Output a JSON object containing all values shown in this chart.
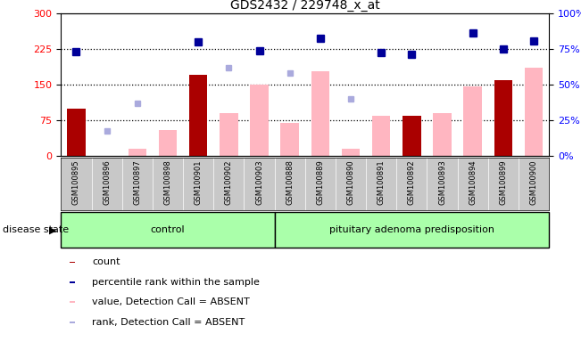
{
  "title": "GDS2432 / 229748_x_at",
  "samples": [
    "GSM100895",
    "GSM100896",
    "GSM100897",
    "GSM100898",
    "GSM100901",
    "GSM100902",
    "GSM100903",
    "GSM100888",
    "GSM100889",
    "GSM100890",
    "GSM100891",
    "GSM100892",
    "GSM100893",
    "GSM100894",
    "GSM100899",
    "GSM100900"
  ],
  "count_values": [
    100,
    0,
    0,
    0,
    170,
    0,
    0,
    0,
    0,
    0,
    0,
    85,
    0,
    0,
    160,
    0
  ],
  "percentile_rank": [
    220,
    null,
    null,
    null,
    240,
    null,
    222,
    null,
    248,
    null,
    218,
    215,
    null,
    260,
    225,
    242
  ],
  "absent_value": [
    null,
    null,
    14,
    55,
    null,
    90,
    150,
    70,
    178,
    15,
    85,
    null,
    90,
    147,
    null,
    185
  ],
  "absent_rank": [
    null,
    52,
    110,
    null,
    null,
    185,
    null,
    175,
    null,
    120,
    null,
    null,
    null,
    null,
    null,
    null
  ],
  "control_count": 7,
  "group1_label": "control",
  "group2_label": "pituitary adenoma predisposition",
  "ylim_left": [
    0,
    300
  ],
  "ylim_right": [
    0,
    100
  ],
  "yticks_left": [
    0,
    75,
    150,
    225,
    300
  ],
  "yticks_right": [
    0,
    25,
    50,
    75,
    100
  ],
  "ytick_right_labels": [
    "0%",
    "25%",
    "50%",
    "75%",
    "100%"
  ],
  "hlines": [
    75,
    150,
    225
  ],
  "bar_color_count": "#AA0000",
  "bar_color_absent": "#FFB6C1",
  "dot_color_percentile": "#000099",
  "dot_color_absent_rank": "#AAAADD",
  "xtick_bg": "#C8C8C8",
  "group1_bg": "#AAFFAA",
  "group2_bg": "#AAFFAA",
  "disease_state_label": "disease state"
}
